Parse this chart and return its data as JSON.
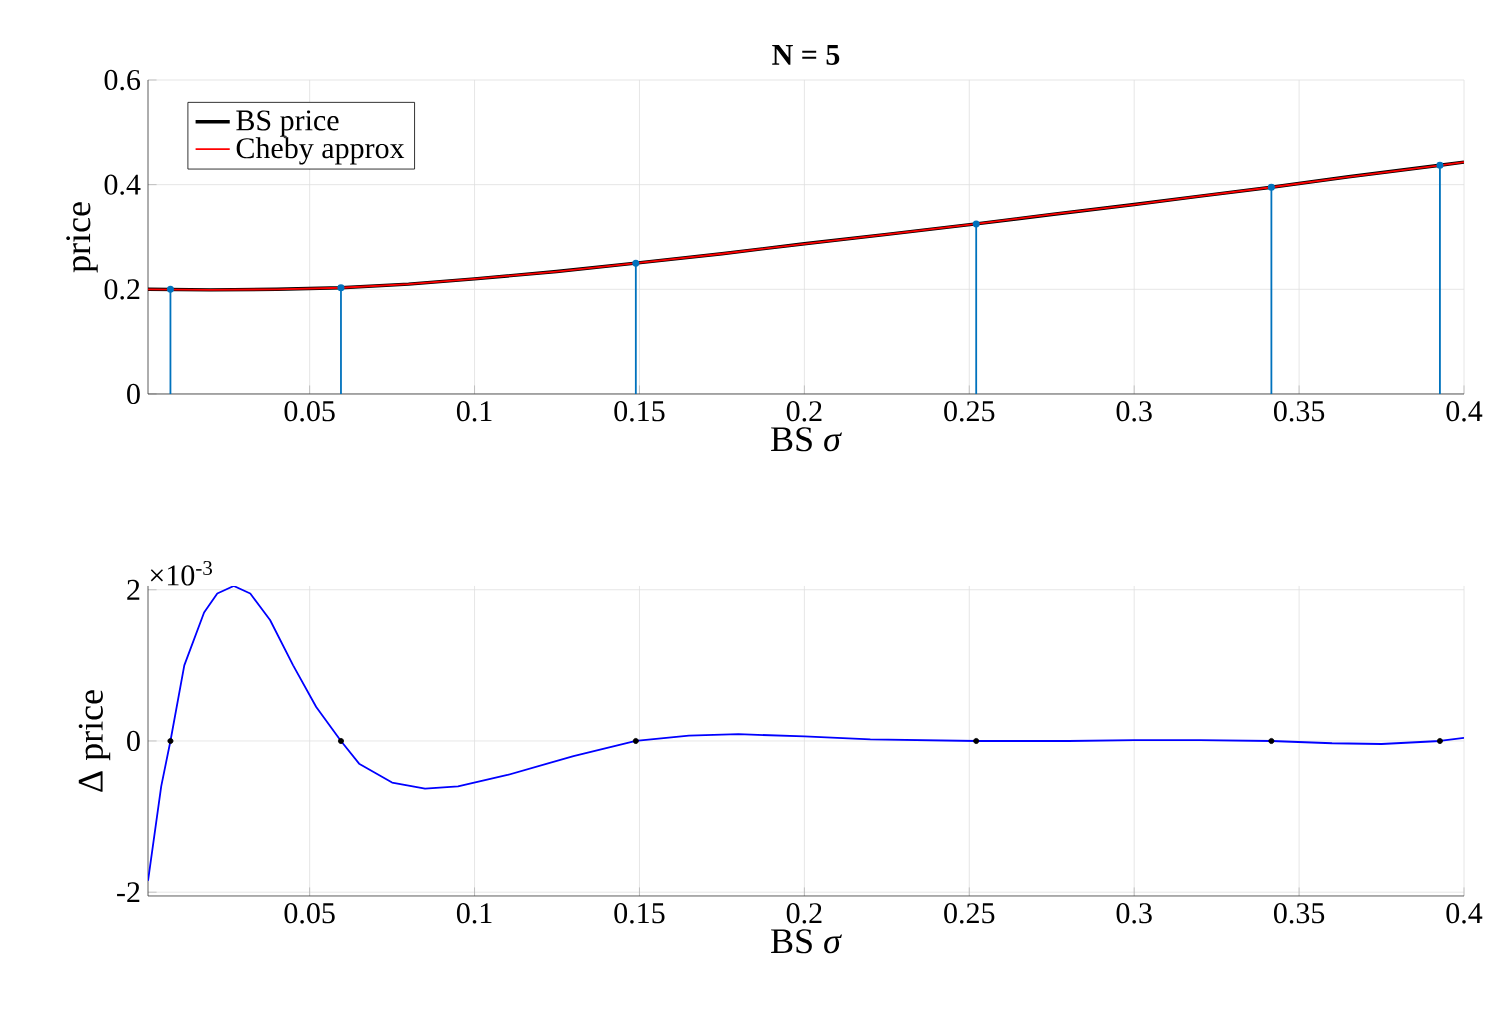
{
  "chart_data": [
    {
      "type": "line",
      "title": "**N = 5**",
      "xlabel": "BS *σ*",
      "ylabel": "price",
      "xlim": [
        0.001,
        0.4
      ],
      "xticks": [
        0.05,
        0.1,
        0.15,
        0.2,
        0.25,
        0.3,
        0.35,
        0.4
      ],
      "ylim": [
        0,
        0.6
      ],
      "yticks": [
        0,
        0.2,
        0.4,
        0.6
      ],
      "grid": true,
      "legend": "top left",
      "series": [
        {
          "name": "BS price",
          "color": "#000000",
          "x": [
            0.001,
            0.02,
            0.04,
            0.0595,
            0.08,
            0.1,
            0.1249,
            0.1489,
            0.175,
            0.2,
            0.225,
            0.2521,
            0.275,
            0.3,
            0.32,
            0.3416,
            0.365,
            0.3927,
            0.4
          ],
          "values": [
            0.2,
            0.199,
            0.2,
            0.203,
            0.21,
            0.22,
            0.234,
            0.25,
            0.268,
            0.287,
            0.305,
            0.325,
            0.343,
            0.362,
            0.378,
            0.395,
            0.415,
            0.437,
            0.443
          ]
        },
        {
          "name": "Cheby approx",
          "color": "#ff0000",
          "x": [
            0.001,
            0.02,
            0.04,
            0.0595,
            0.08,
            0.1,
            0.1249,
            0.1489,
            0.175,
            0.2,
            0.225,
            0.2521,
            0.275,
            0.3,
            0.32,
            0.3416,
            0.365,
            0.3927,
            0.4
          ],
          "values": [
            0.2,
            0.199,
            0.2,
            0.203,
            0.21,
            0.22,
            0.234,
            0.25,
            0.268,
            0.287,
            0.305,
            0.325,
            0.343,
            0.362,
            0.378,
            0.395,
            0.415,
            0.437,
            0.443
          ]
        },
        {
          "type": "lollipop",
          "color": "#0072bd",
          "x": [
            0.0078,
            0.0595,
            0.1489,
            0.2521,
            0.3416,
            0.3927
          ],
          "values": [
            0.2,
            0.203,
            0.25,
            0.325,
            0.395,
            0.437
          ]
        }
      ]
    },
    {
      "type": "line",
      "xlabel": "BS *σ*",
      "ylabel": "Δ price",
      "annotations": [
        "×10$^{-3}$"
      ],
      "xlim": [
        0.001,
        0.4
      ],
      "xticks": [
        0.05,
        0.1,
        0.15,
        0.2,
        0.25,
        0.3,
        0.35,
        0.4
      ],
      "ylim": [
        -2.05,
        2.05
      ],
      "yticks": [
        -2,
        0,
        2
      ],
      "grid": true,
      "series": [
        {
          "color": "#0000ff",
          "x": [
            0.001,
            0.005,
            0.0078,
            0.012,
            0.018,
            0.022,
            0.027,
            0.032,
            0.038,
            0.045,
            0.052,
            0.0595,
            0.065,
            0.075,
            0.085,
            0.095,
            0.11,
            0.13,
            0.1489,
            0.165,
            0.18,
            0.2,
            0.22,
            0.2521,
            0.28,
            0.3,
            0.32,
            0.3416,
            0.36,
            0.375,
            0.3927,
            0.4
          ],
          "values": [
            -1.85,
            -0.6,
            0,
            1.0,
            1.7,
            1.95,
            2.05,
            1.95,
            1.6,
            1.0,
            0.45,
            0,
            -0.3,
            -0.55,
            -0.63,
            -0.6,
            -0.45,
            -0.2,
            0,
            0.07,
            0.09,
            0.06,
            0.02,
            0,
            0,
            0.01,
            0.01,
            0,
            -0.03,
            -0.04,
            0,
            0.04
          ]
        },
        {
          "type": "scatter",
          "color": "#000000",
          "marker": "circle",
          "x": [
            0.0078,
            0.0595,
            0.1489,
            0.2521,
            0.3416,
            0.3927
          ],
          "values": [
            0,
            0,
            0,
            0,
            0,
            0
          ]
        }
      ]
    }
  ]
}
